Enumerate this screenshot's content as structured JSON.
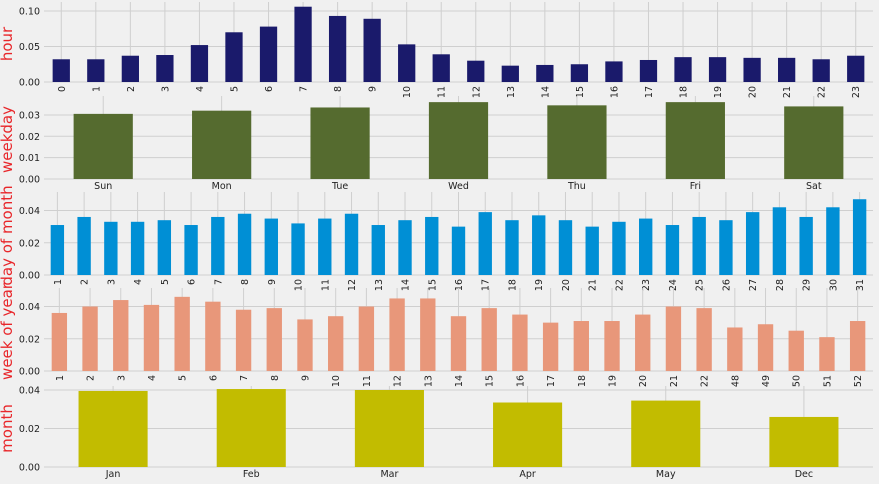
{
  "chart_data": [
    {
      "type": "bar",
      "ylabel": "hour",
      "color": "#1a1a6b",
      "ylim": [
        0,
        0.107
      ],
      "yticks": [
        0.0,
        0.05,
        0.1
      ],
      "ytick_labels": [
        "0.00",
        "0.05",
        "0.10"
      ],
      "tick_rotation": "vertical",
      "bar_width": 0.5,
      "grid": true,
      "categories": [
        "0",
        "1",
        "2",
        "3",
        "4",
        "5",
        "6",
        "7",
        "8",
        "9",
        "10",
        "11",
        "12",
        "13",
        "14",
        "15",
        "16",
        "17",
        "18",
        "19",
        "20",
        "21",
        "22",
        "23"
      ],
      "values": [
        0.032,
        0.032,
        0.037,
        0.038,
        0.052,
        0.07,
        0.078,
        0.106,
        0.093,
        0.089,
        0.053,
        0.039,
        0.03,
        0.023,
        0.024,
        0.025,
        0.029,
        0.031,
        0.035,
        0.035,
        0.034,
        0.034,
        0.032,
        0.037
      ]
    },
    {
      "type": "bar",
      "ylabel": "weekday",
      "color": "#556b2f",
      "ylim": [
        0,
        0.037
      ],
      "yticks": [
        0.0,
        0.01,
        0.02,
        0.03
      ],
      "ytick_labels": [
        "0.00",
        "0.01",
        "0.02",
        "0.03"
      ],
      "tick_rotation": "horizontal",
      "bar_width": 0.5,
      "grid": true,
      "categories": [
        "Sun",
        "Mon",
        "Tue",
        "Wed",
        "Thu",
        "Fri",
        "Sat"
      ],
      "values": [
        0.0305,
        0.032,
        0.0335,
        0.036,
        0.0345,
        0.036,
        0.034
      ]
    },
    {
      "type": "bar",
      "ylabel": "day of month",
      "color": "#008fd5",
      "ylim": [
        0,
        0.049
      ],
      "yticks": [
        0.0,
        0.02,
        0.04
      ],
      "ytick_labels": [
        "0.00",
        "0.02",
        "0.04"
      ],
      "tick_rotation": "vertical",
      "bar_width": 0.5,
      "grid": true,
      "categories": [
        "1",
        "2",
        "3",
        "4",
        "5",
        "6",
        "7",
        "8",
        "9",
        "10",
        "11",
        "12",
        "13",
        "14",
        "15",
        "16",
        "17",
        "18",
        "19",
        "20",
        "21",
        "22",
        "23",
        "24",
        "25",
        "26",
        "27",
        "28",
        "29",
        "30",
        "31"
      ],
      "values": [
        0.031,
        0.036,
        0.033,
        0.033,
        0.034,
        0.031,
        0.036,
        0.038,
        0.035,
        0.032,
        0.035,
        0.038,
        0.031,
        0.034,
        0.036,
        0.03,
        0.039,
        0.034,
        0.037,
        0.034,
        0.03,
        0.033,
        0.035,
        0.031,
        0.036,
        0.034,
        0.039,
        0.042,
        0.036,
        0.042,
        0.047
      ]
    },
    {
      "type": "bar",
      "ylabel": "week of year",
      "color": "#e8977a",
      "ylim": [
        0,
        0.049
      ],
      "yticks": [
        0.0,
        0.02,
        0.04
      ],
      "ytick_labels": [
        "0.00",
        "0.02",
        "0.04"
      ],
      "tick_rotation": "vertical",
      "bar_width": 0.5,
      "grid": true,
      "categories": [
        "1",
        "2",
        "3",
        "4",
        "5",
        "6",
        "7",
        "8",
        "9",
        "10",
        "11",
        "12",
        "13",
        "14",
        "15",
        "16",
        "17",
        "18",
        "19",
        "20",
        "21",
        "22",
        "48",
        "49",
        "50",
        "51",
        "52"
      ],
      "values": [
        0.036,
        0.04,
        0.044,
        0.041,
        0.046,
        0.043,
        0.038,
        0.039,
        0.032,
        0.034,
        0.04,
        0.045,
        0.045,
        0.034,
        0.039,
        0.035,
        0.03,
        0.031,
        0.031,
        0.035,
        0.04,
        0.039,
        0.027,
        0.029,
        0.025,
        0.021,
        0.031
      ]
    },
    {
      "type": "bar",
      "ylabel": "month",
      "color": "#c2bc00",
      "ylim": [
        0,
        0.04
      ],
      "yticks": [
        0.0,
        0.02,
        0.04
      ],
      "ytick_labels": [
        "0.00",
        "0.02",
        "0.04"
      ],
      "tick_rotation": "horizontal",
      "bar_width": 0.5,
      "grid": true,
      "categories": [
        "Jan",
        "Feb",
        "Mar",
        "Apr",
        "May",
        "Dec"
      ],
      "values": [
        0.0395,
        0.0405,
        0.04,
        0.0335,
        0.0345,
        0.026
      ]
    }
  ]
}
